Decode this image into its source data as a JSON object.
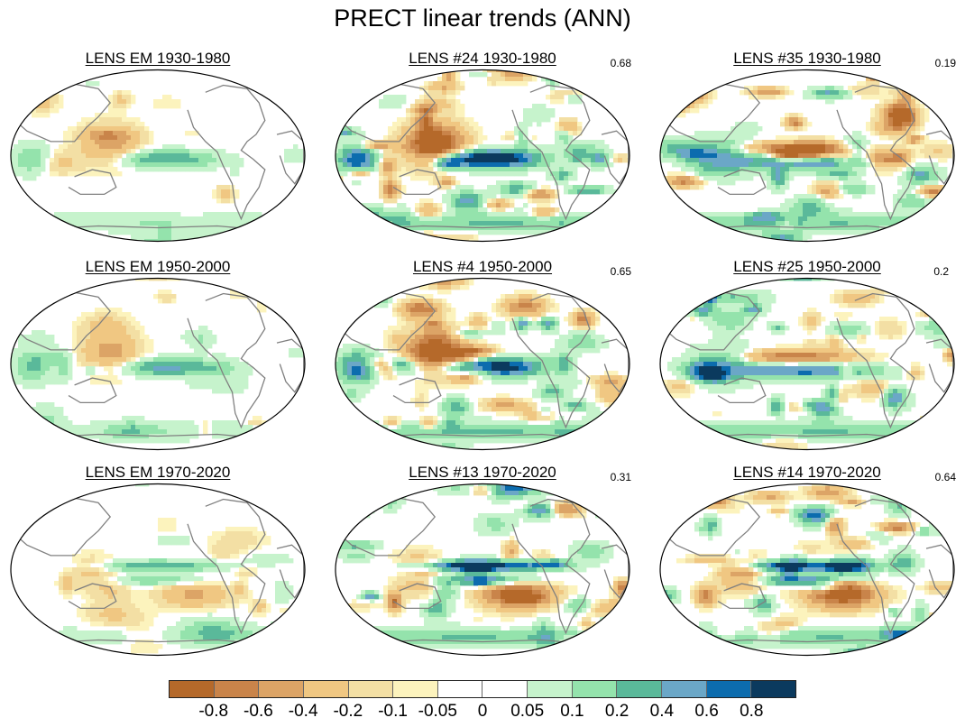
{
  "title": "PRECT linear trends (ANN)",
  "panels": [
    {
      "title": "LENS EM 1930-1980",
      "corr": "",
      "pattern": "em1"
    },
    {
      "title": "LENS #24 1930-1980",
      "corr": "0.68",
      "pattern": "strong1"
    },
    {
      "title": "LENS #35 1930-1980",
      "corr": "0.19",
      "pattern": "noisy1"
    },
    {
      "title": "LENS EM 1950-2000",
      "corr": "",
      "pattern": "em2"
    },
    {
      "title": "LENS #4 1950-2000",
      "corr": "0.65",
      "pattern": "strong2"
    },
    {
      "title": "LENS #25 1950-2000",
      "corr": "0.2",
      "pattern": "noisy2"
    },
    {
      "title": "LENS EM 1970-2020",
      "corr": "",
      "pattern": "em3"
    },
    {
      "title": "LENS #13 1970-2020",
      "corr": "0.31",
      "pattern": "strong3"
    },
    {
      "title": "LENS #14 1970-2020",
      "corr": "0.64",
      "pattern": "strong4"
    }
  ],
  "colorbar": {
    "colors": [
      "#b5692a",
      "#c9844a",
      "#dca466",
      "#f0c782",
      "#f3dfa4",
      "#fcf3bd",
      "#ffffff",
      "#ffffff",
      "#c6f3cc",
      "#94e3ac",
      "#5ab99a",
      "#6ba7c7",
      "#0c6cae",
      "#0b3a5e"
    ],
    "labels": [
      "-0.8",
      "-0.6",
      "-0.4",
      "-0.2",
      "-0.1",
      "-0.05",
      "0",
      "0.05",
      "0.1",
      "0.2",
      "0.4",
      "0.6",
      "0.8"
    ]
  }
}
